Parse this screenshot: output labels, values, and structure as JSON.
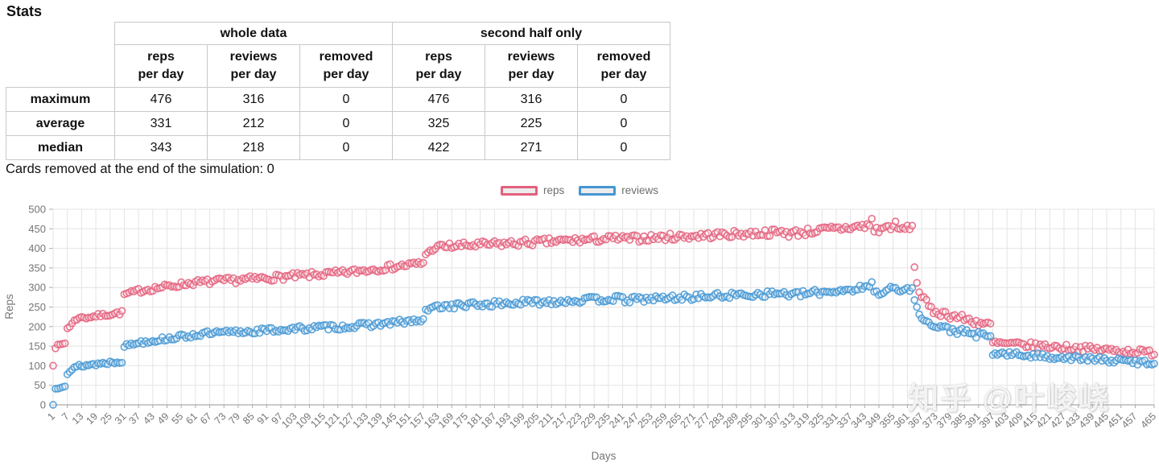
{
  "page": {
    "title": "Stats",
    "cards_removed_note": "Cards removed at the end of the simulation: 0"
  },
  "stats_table": {
    "groups": [
      {
        "label": "whole data",
        "columns": [
          {
            "l1": "reps",
            "l2": "per day"
          },
          {
            "l1": "reviews",
            "l2": "per day"
          },
          {
            "l1": "removed",
            "l2": "per day"
          }
        ]
      },
      {
        "label": "second half only",
        "columns": [
          {
            "l1": "reps",
            "l2": "per day"
          },
          {
            "l1": "reviews",
            "l2": "per day"
          },
          {
            "l1": "removed",
            "l2": "per day"
          }
        ]
      }
    ],
    "rows": [
      {
        "label": "maximum",
        "values": [
          "476",
          "316",
          "0",
          "476",
          "316",
          "0"
        ]
      },
      {
        "label": "average",
        "values": [
          "331",
          "212",
          "0",
          "325",
          "225",
          "0"
        ]
      },
      {
        "label": "median",
        "values": [
          "343",
          "218",
          "0",
          "422",
          "271",
          "0"
        ]
      }
    ]
  },
  "legend": [
    {
      "label": "reps",
      "color": "#e4607d"
    },
    {
      "label": "reviews",
      "color": "#4496d3"
    }
  ],
  "watermark": "知乎 @叶峻峣",
  "chart_data": {
    "type": "scatter",
    "title": "",
    "xlabel": "Days",
    "ylabel": "Reps",
    "xlim": [
      1,
      465
    ],
    "ylim": [
      0,
      500
    ],
    "grid": true,
    "legend_position": "top-center",
    "marker": "open-circle",
    "marker_radius": 4,
    "grid_color": "#e4e4e4",
    "axis_color": "#ababab",
    "tick_label_color": "#757575",
    "y_ticks": [
      0,
      50,
      100,
      150,
      200,
      250,
      300,
      350,
      400,
      450,
      500
    ],
    "x_ticks": [
      1,
      7,
      13,
      19,
      25,
      31,
      37,
      43,
      49,
      55,
      61,
      67,
      73,
      79,
      85,
      91,
      97,
      103,
      109,
      115,
      121,
      127,
      133,
      139,
      145,
      151,
      157,
      163,
      169,
      175,
      181,
      187,
      193,
      199,
      205,
      211,
      217,
      223,
      229,
      235,
      241,
      247,
      253,
      259,
      265,
      271,
      277,
      283,
      289,
      295,
      301,
      307,
      313,
      319,
      325,
      331,
      337,
      343,
      349,
      355,
      361,
      367,
      373,
      379,
      385,
      391,
      397,
      403,
      409,
      415,
      421,
      427,
      433,
      439,
      445,
      451,
      457,
      465
    ],
    "series_note": "one point per day; trend_segments = [day_start, day_end, value_start, value_end, noise_amplitude] estimated from the plot",
    "series": [
      {
        "name": "reps",
        "color": "#e4607d",
        "seed": 7,
        "max": 476,
        "average_whole": 331,
        "median_whole": 343,
        "average_2nd_half": 325,
        "median_2nd_half": 422,
        "trend_segments": [
          [
            1,
            1,
            100,
            100,
            0
          ],
          [
            2,
            6,
            148,
            158,
            4
          ],
          [
            7,
            12,
            196,
            226,
            5
          ],
          [
            13,
            30,
            222,
            236,
            5
          ],
          [
            31,
            36,
            282,
            290,
            5
          ],
          [
            37,
            60,
            292,
            312,
            7
          ],
          [
            61,
            120,
            312,
            336,
            8
          ],
          [
            121,
            157,
            336,
            362,
            8
          ],
          [
            158,
            163,
            386,
            404,
            4
          ],
          [
            164,
            240,
            404,
            426,
            9
          ],
          [
            241,
            310,
            424,
            442,
            9
          ],
          [
            311,
            345,
            438,
            458,
            10
          ],
          [
            346,
            346,
            476,
            476,
            0
          ],
          [
            347,
            356,
            445,
            460,
            10
          ],
          [
            357,
            363,
            448,
            455,
            6
          ],
          [
            364,
            364,
            352,
            352,
            0
          ],
          [
            365,
            365,
            312,
            312,
            0
          ],
          [
            366,
            370,
            288,
            252,
            8
          ],
          [
            371,
            396,
            242,
            203,
            10
          ],
          [
            397,
            465,
            158,
            133,
            8
          ]
        ]
      },
      {
        "name": "reviews",
        "color": "#4496d3",
        "seed": 13,
        "max": 316,
        "average_whole": 212,
        "median_whole": 218,
        "average_2nd_half": 225,
        "median_2nd_half": 271,
        "trend_segments": [
          [
            1,
            1,
            0,
            0,
            0
          ],
          [
            2,
            6,
            42,
            50,
            3
          ],
          [
            7,
            12,
            82,
            100,
            5
          ],
          [
            13,
            30,
            100,
            112,
            5
          ],
          [
            31,
            36,
            150,
            158,
            5
          ],
          [
            37,
            60,
            160,
            178,
            6
          ],
          [
            61,
            120,
            180,
            200,
            7
          ],
          [
            121,
            157,
            198,
            216,
            7
          ],
          [
            158,
            163,
            240,
            254,
            4
          ],
          [
            164,
            240,
            252,
            272,
            8
          ],
          [
            241,
            310,
            268,
            286,
            8
          ],
          [
            311,
            345,
            280,
            300,
            8
          ],
          [
            346,
            346,
            314,
            314,
            0
          ],
          [
            347,
            356,
            285,
            300,
            8
          ],
          [
            357,
            363,
            290,
            298,
            6
          ],
          [
            364,
            364,
            268,
            268,
            0
          ],
          [
            365,
            365,
            250,
            250,
            0
          ],
          [
            366,
            370,
            234,
            208,
            7
          ],
          [
            371,
            396,
            202,
            172,
            9
          ],
          [
            397,
            465,
            132,
            107,
            7
          ]
        ]
      }
    ]
  }
}
